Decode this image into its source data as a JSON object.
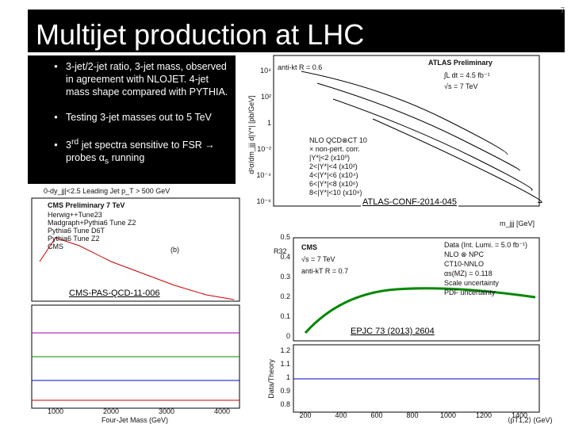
{
  "header": {
    "title": "Multijet production at LHC",
    "page_number": "7"
  },
  "bullets": [
    {
      "text": "3-jet/2-jet ratio, 3-jet mass, observed in agreement with NLOJET. 4-jet mass shape compared with PYTHIA."
    },
    {
      "text": "Testing 3-jet masses out to 5 TeV"
    },
    {
      "pre": "3",
      "sup": "rd",
      "mid": " jet spectra sensitive to FSR → probes α",
      "sub": "s",
      "end": " running"
    }
  ],
  "figures": [
    {
      "reference": "ATLAS-CONF-2014-045",
      "heading": "ATLAS Preliminary",
      "lines": [
        "anti-kt R = 0.6",
        "∫L dt = 4.5 fb⁻¹",
        "√s = 7 TeV"
      ],
      "y_label": "d²σ/dm_jjj d|Y*| [pb/GeV]",
      "x_label": "m_jjj [GeV]",
      "yticks": [
        "10⁴",
        "10²",
        "1",
        "10⁻²",
        "10⁻⁴",
        "10⁻⁶"
      ],
      "legend": [
        "NLO QCD⊗CT 10",
        "× non-pert. corr.",
        "|Y*|<2 (x10⁰)",
        "2<|Y*|<4 (x10²)",
        "4<|Y*|<6 (x10⁴)",
        "6<|Y*|<8 (x10⁶)",
        "8<|Y*|<10 (x10⁸)"
      ]
    },
    {
      "reference": "CMS-PAS-QCD-11-006",
      "heading": "CMS Preliminary 7 TeV",
      "top_note": "0-dy_jj|<2.5     Leading Jet p_T > 500 GeV",
      "panel": "(b)",
      "legend": [
        "Herwig++Tune23",
        "Madgraph+Pythia6 Tune Z2",
        "Pythia6 Tune D6T",
        "Pythia6 Tune Z2",
        "CMS"
      ],
      "x_label": "Four-Jet Mass (GeV)",
      "xticks": [
        "1000",
        "2000",
        "3000",
        "4000"
      ]
    },
    {
      "reference": "EPJC 73 (2013) 2604",
      "heading": "CMS",
      "lines": [
        "√s = 7 TeV",
        "anti-kT R = 0.7"
      ],
      "legend": [
        "Data (Int. Lumi. = 5.0 fb⁻¹)",
        "NLO ⊗ NPC",
        "CT10-NNLO",
        "αs(MZ) = 0.118",
        "Scale uncertainty",
        "PDF uncertainty"
      ],
      "y_label": "R32",
      "lower_y_label": "Data/Theory",
      "x_label": "⟨pT1,2⟩ (GeV)",
      "yticks": [
        "0.5",
        "0.4",
        "0.3",
        "0.2",
        "0.1",
        "0"
      ],
      "lower_yticks": [
        "1.2",
        "1.1",
        "1",
        "0.9",
        "0.8"
      ],
      "xticks": [
        "200",
        "400",
        "600",
        "800",
        "1000",
        "1200",
        "1400"
      ]
    }
  ]
}
